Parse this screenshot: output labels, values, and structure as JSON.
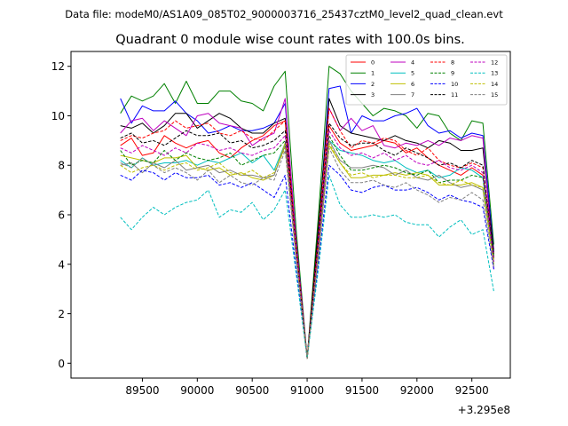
{
  "header": {
    "data_file": "Data file: modeM0/AS1A09_085T02_9000003716_25437cztM0_level2_quad_clean.evt"
  },
  "chart_data": {
    "type": "line",
    "title": "Quadrant 0 module wise count rates with 100.0s bins.",
    "xlabel": "",
    "ylabel": "",
    "x_offset_label": "+3.295e8",
    "xlim": [
      88850,
      92850
    ],
    "ylim": [
      -0.6,
      12.6
    ],
    "xticks": [
      89500,
      90000,
      90500,
      91000,
      91500,
      92000,
      92500
    ],
    "yticks": [
      0,
      2,
      4,
      6,
      8,
      10,
      12
    ],
    "grid": false,
    "legend_placement": "top-right",
    "x": [
      89300,
      89400,
      89500,
      89600,
      89700,
      89800,
      89900,
      90000,
      90100,
      90200,
      90300,
      90400,
      90500,
      90600,
      90700,
      90800,
      90900,
      91000,
      91100,
      91200,
      91300,
      91400,
      91500,
      91600,
      91700,
      91800,
      91900,
      92000,
      92100,
      92200,
      92300,
      92400,
      92500,
      92600,
      92700
    ],
    "series": [
      {
        "name": "0",
        "color": "#ff0000",
        "dash": "solid",
        "values": [
          8.8,
          9.1,
          8.4,
          8.5,
          9.2,
          8.9,
          8.7,
          8.9,
          9.0,
          8.5,
          8.3,
          8.7,
          9.0,
          9.2,
          9.6,
          9.8,
          4.5,
          0.2,
          4.5,
          9.6,
          8.9,
          8.6,
          8.7,
          8.8,
          9.0,
          8.9,
          8.5,
          8.7,
          8.3,
          8.0,
          7.8,
          7.6,
          7.9,
          7.6,
          4.6
        ]
      },
      {
        "name": "1",
        "color": "#008000",
        "dash": "solid",
        "values": [
          10.1,
          10.8,
          10.6,
          10.8,
          11.3,
          10.5,
          11.4,
          10.5,
          10.5,
          11.0,
          11.0,
          10.6,
          10.5,
          10.2,
          11.2,
          11.8,
          5.4,
          0.2,
          5.8,
          12.0,
          11.7,
          11.0,
          10.5,
          10.0,
          10.3,
          10.2,
          10.0,
          9.5,
          10.1,
          10.0,
          9.3,
          9.0,
          9.8,
          9.7,
          4.8
        ]
      },
      {
        "name": "2",
        "color": "#0000ff",
        "dash": "solid",
        "values": [
          10.7,
          9.7,
          10.4,
          10.2,
          10.2,
          10.6,
          10.1,
          9.8,
          9.3,
          9.4,
          9.6,
          9.4,
          9.4,
          9.5,
          9.7,
          10.5,
          5.0,
          0.2,
          5.2,
          11.1,
          11.2,
          9.3,
          10.0,
          9.8,
          9.8,
          10.0,
          10.1,
          10.3,
          9.6,
          9.3,
          9.4,
          9.1,
          9.3,
          9.2,
          4.5
        ]
      },
      {
        "name": "3",
        "color": "#000000",
        "dash": "solid",
        "values": [
          9.6,
          9.5,
          9.7,
          9.3,
          9.6,
          10.1,
          10.1,
          9.5,
          9.8,
          10.1,
          9.9,
          9.5,
          9.3,
          9.3,
          9.7,
          9.9,
          4.9,
          0.2,
          5.4,
          10.7,
          9.6,
          9.3,
          9.2,
          9.1,
          9.0,
          9.2,
          9.0,
          8.9,
          8.7,
          9.0,
          8.9,
          8.6,
          8.6,
          8.7,
          4.4
        ]
      },
      {
        "name": "4",
        "color": "#bf00bf",
        "dash": "solid",
        "values": [
          9.3,
          9.8,
          9.9,
          9.4,
          9.8,
          9.5,
          9.2,
          10.0,
          10.1,
          9.7,
          9.6,
          9.5,
          8.8,
          9.1,
          9.3,
          10.7,
          4.9,
          0.2,
          4.7,
          10.3,
          9.4,
          9.9,
          9.4,
          9.6,
          8.8,
          8.7,
          8.9,
          8.8,
          9.0,
          8.8,
          9.1,
          9.0,
          9.2,
          9.1,
          3.8
        ]
      },
      {
        "name": "5",
        "color": "#00bfbf",
        "dash": "solid",
        "values": [
          8.2,
          7.9,
          8.3,
          8.0,
          8.1,
          8.1,
          8.2,
          8.0,
          8.2,
          8.1,
          8.3,
          8.5,
          8.1,
          8.4,
          7.8,
          8.9,
          4.4,
          0.2,
          4.4,
          9.0,
          8.6,
          8.5,
          8.4,
          8.2,
          8.1,
          8.2,
          7.9,
          7.7,
          7.8,
          7.5,
          7.6,
          7.9,
          7.8,
          7.5,
          4.0
        ]
      },
      {
        "name": "6",
        "color": "#bfbf00",
        "dash": "solid",
        "values": [
          8.4,
          8.3,
          8.2,
          8.1,
          8.3,
          8.3,
          8.4,
          7.9,
          7.8,
          7.9,
          7.6,
          7.7,
          7.5,
          7.4,
          7.6,
          8.9,
          4.3,
          0.2,
          4.4,
          8.8,
          8.1,
          7.5,
          7.5,
          7.6,
          7.6,
          7.7,
          7.6,
          7.7,
          7.6,
          7.2,
          7.2,
          7.2,
          7.3,
          7.1,
          4.2
        ]
      },
      {
        "name": "7",
        "color": "#808080",
        "dash": "solid",
        "values": [
          8.0,
          8.1,
          7.7,
          8.1,
          7.9,
          8.2,
          7.8,
          7.9,
          8.0,
          7.7,
          7.8,
          7.6,
          7.6,
          7.5,
          7.6,
          8.8,
          4.3,
          0.2,
          4.2,
          9.0,
          8.2,
          7.9,
          7.9,
          8.0,
          7.9,
          7.6,
          7.8,
          7.5,
          7.4,
          7.6,
          7.3,
          7.1,
          7.2,
          7.0,
          4.1
        ]
      },
      {
        "name": "8",
        "color": "#ff0000",
        "dash": "dashed",
        "values": [
          9.0,
          9.2,
          9.1,
          9.3,
          9.4,
          9.8,
          9.5,
          9.6,
          9.7,
          9.3,
          9.2,
          9.4,
          9.1,
          9.0,
          9.4,
          9.8,
          4.8,
          0.2,
          5.0,
          10.3,
          9.4,
          8.7,
          9.0,
          8.9,
          9.1,
          9.0,
          8.6,
          8.4,
          8.7,
          8.2,
          8.0,
          7.9,
          8.1,
          7.9,
          4.3
        ]
      },
      {
        "name": "9",
        "color": "#008000",
        "dash": "dashed",
        "values": [
          8.6,
          8.0,
          8.2,
          8.1,
          8.6,
          8.2,
          8.5,
          8.3,
          8.2,
          8.3,
          8.5,
          8.0,
          8.2,
          8.4,
          8.5,
          9.0,
          4.4,
          0.2,
          4.5,
          9.2,
          8.4,
          7.8,
          7.8,
          7.9,
          8.0,
          7.9,
          7.7,
          7.6,
          7.8,
          7.3,
          7.4,
          7.4,
          7.6,
          7.5,
          4.3
        ]
      },
      {
        "name": "10",
        "color": "#0000ff",
        "dash": "dashed",
        "values": [
          7.6,
          7.4,
          7.8,
          7.7,
          7.4,
          7.7,
          7.5,
          7.5,
          7.6,
          7.2,
          7.3,
          7.1,
          7.3,
          7.0,
          6.7,
          7.6,
          3.8,
          0.2,
          3.9,
          8.0,
          7.6,
          7.0,
          6.9,
          7.1,
          7.2,
          7.0,
          7.0,
          7.1,
          6.9,
          6.6,
          6.8,
          6.6,
          6.5,
          6.3,
          3.8
        ]
      },
      {
        "name": "11",
        "color": "#000000",
        "dash": "dashed",
        "values": [
          9.1,
          9.3,
          8.9,
          9.0,
          8.8,
          9.1,
          9.4,
          9.2,
          9.2,
          9.3,
          8.9,
          9.0,
          8.7,
          8.8,
          9.0,
          9.4,
          4.6,
          0.2,
          4.8,
          9.7,
          9.1,
          8.8,
          8.9,
          8.9,
          8.6,
          8.4,
          8.7,
          8.5,
          8.3,
          8.0,
          8.1,
          7.9,
          8.2,
          8.0,
          4.2
        ]
      },
      {
        "name": "12",
        "color": "#bf00bf",
        "dash": "dashed",
        "values": [
          8.7,
          8.5,
          8.8,
          8.6,
          8.4,
          8.7,
          8.5,
          8.9,
          8.8,
          8.6,
          8.7,
          8.5,
          8.4,
          8.6,
          8.7,
          9.2,
          4.5,
          0.2,
          4.6,
          9.4,
          8.7,
          8.4,
          8.5,
          8.3,
          8.5,
          8.2,
          8.4,
          8.1,
          8.0,
          8.2,
          7.9,
          7.8,
          8.0,
          7.7,
          4.1
        ]
      },
      {
        "name": "13",
        "color": "#00bfbf",
        "dash": "dashed",
        "values": [
          5.9,
          5.4,
          5.9,
          6.3,
          6.0,
          6.3,
          6.5,
          6.6,
          7.0,
          5.9,
          6.2,
          6.1,
          6.5,
          5.8,
          6.2,
          7.0,
          3.6,
          0.2,
          3.7,
          7.6,
          6.4,
          5.9,
          5.9,
          6.0,
          5.9,
          6.0,
          5.7,
          5.6,
          5.6,
          5.1,
          5.5,
          5.8,
          5.2,
          5.4,
          2.9
        ]
      },
      {
        "name": "14",
        "color": "#bfbf00",
        "dash": "dashed",
        "values": [
          8.0,
          7.7,
          7.9,
          8.0,
          7.8,
          8.0,
          8.1,
          7.8,
          7.9,
          8.1,
          7.7,
          7.6,
          7.8,
          7.5,
          7.7,
          8.7,
          4.3,
          0.2,
          4.3,
          8.9,
          8.1,
          7.6,
          7.7,
          7.5,
          7.6,
          7.6,
          7.5,
          7.5,
          7.6,
          7.3,
          7.2,
          7.4,
          7.2,
          7.1,
          4.0
        ]
      },
      {
        "name": "15",
        "color": "#808080",
        "dash": "dashed",
        "values": [
          8.1,
          7.9,
          8.3,
          8.0,
          7.7,
          7.9,
          7.7,
          7.4,
          7.8,
          7.3,
          7.6,
          7.3,
          7.2,
          7.5,
          7.4,
          8.6,
          4.2,
          0.2,
          4.2,
          8.7,
          7.8,
          7.3,
          7.3,
          7.4,
          7.2,
          7.1,
          7.3,
          7.0,
          6.8,
          6.5,
          6.7,
          6.6,
          6.9,
          6.6,
          3.9
        ]
      }
    ]
  }
}
